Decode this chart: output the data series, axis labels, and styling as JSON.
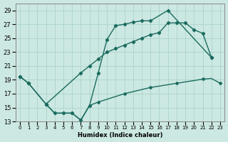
{
  "xlabel": "Humidex (Indice chaleur)",
  "bg_color": "#cce8e2",
  "grid_color": "#aad4cc",
  "line_color": "#1a6b5e",
  "xlim": [
    -0.5,
    23.5
  ],
  "ylim": [
    13,
    30
  ],
  "xticks": [
    0,
    1,
    2,
    3,
    4,
    5,
    6,
    7,
    8,
    9,
    10,
    11,
    12,
    13,
    14,
    15,
    16,
    17,
    18,
    19,
    20,
    21,
    22,
    23
  ],
  "yticks": [
    13,
    15,
    17,
    19,
    21,
    23,
    25,
    27,
    29
  ],
  "series": [
    {
      "x": [
        0,
        1,
        3,
        4,
        5,
        6,
        7,
        8,
        9,
        10,
        11,
        12,
        13,
        14,
        15,
        17,
        22
      ],
      "y": [
        19.5,
        18.5,
        15.5,
        14.2,
        14.2,
        14.2,
        13.2,
        15.3,
        20.0,
        24.8,
        26.8,
        27.0,
        27.3,
        27.5,
        27.5,
        29.0,
        22.2
      ]
    },
    {
      "x": [
        0,
        1,
        3,
        7,
        8,
        9,
        10,
        11,
        12,
        13,
        14,
        15,
        16,
        17,
        18,
        19,
        20,
        21,
        22
      ],
      "y": [
        19.5,
        18.5,
        15.5,
        20.0,
        21.0,
        22.0,
        23.0,
        23.5,
        24.0,
        24.5,
        25.0,
        25.5,
        25.8,
        27.2,
        27.2,
        27.2,
        26.2,
        25.7,
        22.2
      ]
    },
    {
      "x": [
        3,
        4,
        5,
        6,
        7,
        8,
        9,
        10,
        11,
        12,
        13,
        14,
        15,
        16,
        17,
        18,
        19,
        20,
        21,
        22,
        23
      ],
      "y": [
        15.5,
        14.2,
        14.2,
        14.2,
        13.2,
        15.3,
        15.8,
        16.2,
        16.6,
        17.0,
        17.3,
        17.6,
        17.9,
        18.1,
        18.3,
        18.5,
        18.7,
        18.9,
        19.1,
        19.2,
        18.5
      ]
    }
  ]
}
